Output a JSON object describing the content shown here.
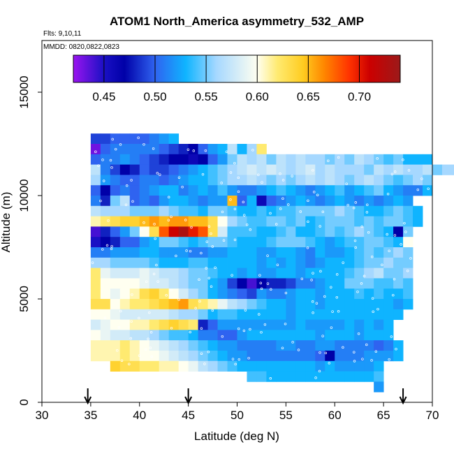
{
  "chart_data": {
    "type": "heatmap",
    "title": "ATOM1 North_America asymmetry_532_AMP",
    "subtitle_flights": "Flts: 9,10,11",
    "subtitle_dates": "MMDD: 0820,0822,0823",
    "xlabel": "Latitude (deg N)",
    "ylabel": "Altitude (m)",
    "xlim": [
      30,
      70
    ],
    "ylim": [
      0,
      17500
    ],
    "x_ticks": [
      30,
      35,
      40,
      45,
      50,
      55,
      60,
      65,
      70
    ],
    "x_tick_labels": [
      "30",
      "35",
      "40",
      "45",
      "50",
      "55",
      "60",
      "65",
      "70"
    ],
    "y_ticks": [
      0,
      5000,
      10000,
      15000
    ],
    "y_tick_labels": [
      "0",
      "5000",
      "10000",
      "15000"
    ],
    "grid": false,
    "cell_size": {
      "lat_deg": 1,
      "alt_m": 500
    },
    "colorbar": {
      "placement": "top-inside",
      "range": [
        0.42,
        0.74
      ],
      "ticks": [
        0.45,
        0.5,
        0.55,
        0.6,
        0.65,
        0.7
      ],
      "tick_labels": [
        "0.45",
        "0.50",
        "0.55",
        "0.60",
        "0.65",
        "0.70"
      ],
      "stops": [
        {
          "v": 0.42,
          "color": "#9a14f0"
        },
        {
          "v": 0.45,
          "color": "#1a10c4"
        },
        {
          "v": 0.47,
          "color": "#0000a8"
        },
        {
          "v": 0.5,
          "color": "#2f63f0"
        },
        {
          "v": 0.53,
          "color": "#0fb4ff"
        },
        {
          "v": 0.56,
          "color": "#a6d8ff"
        },
        {
          "v": 0.6,
          "color": "#fffff0"
        },
        {
          "v": 0.62,
          "color": "#ffea70"
        },
        {
          "v": 0.645,
          "color": "#ffcc20"
        },
        {
          "v": 0.665,
          "color": "#ff8800"
        },
        {
          "v": 0.69,
          "color": "#ff3300"
        },
        {
          "v": 0.71,
          "color": "#cc0000"
        },
        {
          "v": 0.74,
          "color": "#9c1a1a"
        }
      ]
    },
    "flight_dates_latitude": [
      34.7,
      45,
      67
    ],
    "bands": [
      {
        "alt": 12500,
        "lat0": 35,
        "vals": [
          0.49,
          0.49,
          0.5,
          0.5,
          0.5,
          0.5,
          0.51,
          0.52,
          0.53
        ]
      },
      {
        "alt": 12000,
        "lat0": 35,
        "vals": [
          0.43,
          0.5,
          0.51,
          0.51,
          0.51,
          0.51,
          0.51,
          0.5,
          0.49,
          0.48,
          0.47,
          0.5,
          0.52,
          0.53,
          0.57,
          0.53,
          0.56,
          0.62
        ]
      },
      {
        "alt": 11500,
        "lat0": 35,
        "vals": [
          0.5,
          0.51,
          0.51,
          0.52,
          0.51,
          0.5,
          0.49,
          0.48,
          0.47,
          0.47,
          0.46,
          0.47,
          0.5,
          0.52,
          0.55,
          0.57,
          0.56,
          0.57,
          0.55,
          0.57,
          0.56,
          0.57,
          0.56,
          0.56,
          0.55,
          0.56,
          0.55,
          0.57,
          0.56,
          0.55,
          0.54,
          0.55,
          0.53,
          0.53,
          0.53
        ]
      },
      {
        "alt": 11000,
        "lat0": 35,
        "vals": [
          0.57,
          0.51,
          0.49,
          0.47,
          0.48,
          0.5,
          0.49,
          0.49,
          0.5,
          0.51,
          0.52,
          0.53,
          0.54,
          0.55,
          0.56,
          0.57,
          0.58,
          0.57,
          0.58,
          0.57,
          0.56,
          0.57,
          0.58,
          0.56,
          0.57,
          0.56,
          0.56,
          0.56,
          0.55,
          0.57,
          0.56,
          0.57,
          0.56,
          0.56,
          0.57,
          0.55,
          0.56,
          0.56,
          0.55,
          0.56,
          0.55,
          0.56,
          0.55,
          0.56,
          0.55,
          0.56,
          0.55,
          0.55,
          0.56,
          0.55,
          0.56,
          0.55,
          0.56,
          0.55,
          0.55,
          0.56,
          0.55,
          0.56,
          0.55,
          0.55,
          0.56,
          0.55,
          0.56,
          0.55,
          0.55,
          0.56,
          0.54,
          0.56,
          0.53,
          0.55,
          0.56,
          0.55,
          0.56,
          0.55,
          0.56,
          0.55
        ]
      },
      {
        "alt": 10500,
        "lat0": 35,
        "vals": [
          0.56,
          0.52,
          0.51,
          0.5,
          0.5,
          0.51,
          0.51,
          0.5,
          0.51,
          0.52,
          0.53,
          0.53,
          0.54,
          0.55,
          0.56,
          0.56,
          0.57,
          0.56,
          0.55,
          0.56,
          0.55,
          0.56,
          0.57,
          0.56,
          0.57,
          0.56,
          0.55,
          0.56,
          0.57,
          0.56,
          0.55,
          0.54,
          0.55,
          0.56,
          0.55
        ]
      },
      {
        "alt": 10000,
        "lat0": 35,
        "vals": [
          0.5,
          0.47,
          0.5,
          0.51,
          0.5,
          0.51,
          0.52,
          0.53,
          0.53,
          0.51,
          0.52,
          0.53,
          0.52,
          0.54,
          0.52,
          0.51,
          0.51,
          0.52,
          0.53,
          0.54,
          0.53,
          0.52,
          0.51,
          0.52,
          0.53,
          0.54,
          0.52,
          0.53,
          0.54,
          0.55,
          0.53,
          0.52,
          0.51,
          0.51,
          0.53
        ]
      },
      {
        "alt": 9500,
        "lat0": 35,
        "vals": [
          0.51,
          0.48,
          0.55,
          0.57,
          0.5,
          0.51,
          0.5,
          0.52,
          0.53,
          0.53,
          0.52,
          0.51,
          0.52,
          0.52,
          0.65,
          0.5,
          0.53,
          0.46,
          0.5,
          0.51,
          0.52,
          0.53,
          0.52,
          0.51,
          0.52,
          0.53,
          0.52,
          0.51,
          0.52,
          0.51,
          0.52,
          0.53,
          0.52
        ]
      },
      {
        "alt": 9000,
        "lat0": 35,
        "vals": [
          0.57,
          0.56,
          0.56,
          0.56,
          0.55,
          0.55,
          0.55,
          0.56,
          0.55,
          0.54,
          0.54,
          0.53,
          0.55,
          0.55,
          0.54,
          0.53,
          0.53,
          0.54,
          0.53,
          0.54,
          0.54,
          0.55,
          0.55,
          0.55,
          0.55,
          0.56,
          0.55,
          0.54,
          0.53,
          0.53,
          0.54,
          0.55,
          0.54,
          0.53
        ]
      },
      {
        "alt": 8500,
        "lat0": 35,
        "vals": [
          0.61,
          0.62,
          0.63,
          0.64,
          0.64,
          0.65,
          0.66,
          0.65,
          0.66,
          0.66,
          0.65,
          0.65,
          0.63,
          0.6,
          0.56,
          0.55,
          0.54,
          0.54,
          0.55,
          0.55,
          0.54,
          0.55,
          0.53,
          0.54,
          0.55,
          0.55,
          0.55,
          0.54,
          0.55,
          0.54,
          0.55,
          0.55,
          0.54,
          0.53
        ]
      },
      {
        "alt": 8000,
        "lat0": 35,
        "vals": [
          0.44,
          0.48,
          0.5,
          0.52,
          0.55,
          0.6,
          0.63,
          0.68,
          0.71,
          0.73,
          0.7,
          0.68,
          0.63,
          0.58,
          0.54,
          0.54,
          0.54,
          0.53,
          0.53,
          0.54,
          0.55,
          0.53,
          0.53,
          0.54,
          0.55,
          0.54,
          0.55,
          0.56,
          0.55,
          0.54,
          0.53,
          0.47,
          0.55
        ]
      },
      {
        "alt": 7500,
        "lat0": 35,
        "vals": [
          0.45,
          0.47,
          0.48,
          0.5,
          0.5,
          0.52,
          0.53,
          0.55,
          0.55,
          0.54,
          0.53,
          0.54,
          0.55,
          0.55,
          0.54,
          0.53,
          0.53,
          0.53,
          0.54,
          0.55,
          0.55,
          0.55,
          0.54,
          0.53,
          0.52,
          0.53,
          0.54,
          0.54,
          0.55,
          0.55,
          0.54,
          0.53,
          0.6
        ]
      },
      {
        "alt": 7000,
        "lat0": 35,
        "vals": [
          0.51,
          0.51,
          0.52,
          0.52,
          0.52,
          0.53,
          0.53,
          0.52,
          0.52,
          0.52,
          0.51,
          0.51,
          0.52,
          0.52,
          0.53,
          0.53,
          0.53,
          0.52,
          0.52,
          0.53,
          0.53,
          0.52,
          0.51,
          0.53,
          0.52,
          0.52,
          0.53,
          0.54,
          0.55,
          0.54,
          0.55,
          0.56,
          0.55
        ]
      },
      {
        "alt": 6500,
        "lat0": 35,
        "vals": [
          0.56,
          0.56,
          0.55,
          0.55,
          0.55,
          0.55,
          0.54,
          0.53,
          0.53,
          0.53,
          0.54,
          0.54,
          0.53,
          0.53,
          0.53,
          0.53,
          0.53,
          0.52,
          0.53,
          0.52,
          0.53,
          0.52,
          0.51,
          0.52,
          0.53,
          0.53,
          0.53,
          0.54,
          0.55,
          0.55,
          0.56,
          0.55,
          0.55
        ]
      },
      {
        "alt": 6000,
        "lat0": 35,
        "vals": [
          0.62,
          0.59,
          0.58,
          0.58,
          0.58,
          0.59,
          0.58,
          0.57,
          0.57,
          0.56,
          0.55,
          0.55,
          0.54,
          0.53,
          0.53,
          0.52,
          0.53,
          0.52,
          0.52,
          0.53,
          0.53,
          0.52,
          0.53,
          0.53,
          0.53,
          0.53,
          0.54,
          0.55,
          0.56,
          0.57,
          0.55,
          0.55,
          0.56
        ]
      },
      {
        "alt": 5500,
        "lat0": 35,
        "vals": [
          0.62,
          0.6,
          0.6,
          0.6,
          0.6,
          0.59,
          0.58,
          0.58,
          0.57,
          0.56,
          0.55,
          0.55,
          0.53,
          0.52,
          0.49,
          0.47,
          0.44,
          0.47,
          0.48,
          0.48,
          0.49,
          0.51,
          0.51,
          0.52,
          0.53,
          0.53,
          0.55,
          0.55,
          0.55,
          0.54,
          0.54,
          0.55,
          0.54
        ]
      },
      {
        "alt": 5000,
        "lat0": 35,
        "vals": [
          0.62,
          0.6,
          0.59,
          0.6,
          0.61,
          0.63,
          0.64,
          0.62,
          0.6,
          0.58,
          0.56,
          0.55,
          0.53,
          0.52,
          0.51,
          0.5,
          0.49,
          0.52,
          0.51,
          0.51,
          0.52,
          0.53,
          0.53,
          0.52,
          0.53,
          0.53,
          0.53,
          0.54,
          0.53,
          0.54,
          0.53,
          0.53,
          0.54
        ]
      },
      {
        "alt": 4500,
        "lat0": 35,
        "vals": [
          0.63,
          0.63,
          0.6,
          0.61,
          0.62,
          0.62,
          0.63,
          0.64,
          0.65,
          0.66,
          0.63,
          0.62,
          0.61,
          0.59,
          0.57,
          0.56,
          0.55,
          0.54,
          0.53,
          0.53,
          0.52,
          0.53,
          0.53,
          0.52,
          0.53,
          0.53,
          0.53,
          0.53,
          0.53,
          0.53,
          0.53,
          0.52,
          0.53
        ]
      },
      {
        "alt": 4000,
        "lat0": 35,
        "vals": [
          0.6,
          0.6,
          0.59,
          0.58,
          0.58,
          0.58,
          0.58,
          0.58,
          0.57,
          0.56,
          0.56,
          0.55,
          0.53,
          0.54,
          0.54,
          0.53,
          0.53,
          0.53,
          0.53,
          0.53,
          0.52,
          0.53,
          0.53,
          0.53,
          0.53,
          0.53,
          0.53,
          0.53,
          0.53,
          0.53,
          0.53,
          0.53
        ]
      },
      {
        "alt": 3500,
        "lat0": 35,
        "vals": [
          0.58,
          0.59,
          0.6,
          0.6,
          0.61,
          0.61,
          0.62,
          0.63,
          0.64,
          0.63,
          0.62,
          0.48,
          0.5,
          0.52,
          0.52,
          0.52,
          0.52,
          0.52,
          0.52,
          0.52,
          0.52,
          0.53,
          0.52,
          0.52,
          0.52,
          0.52,
          0.53,
          0.52,
          0.53,
          0.52,
          0.53
        ]
      },
      {
        "alt": 3000,
        "lat0": 35,
        "vals": [
          0.6,
          0.59,
          0.58,
          0.58,
          0.57,
          0.57,
          0.56,
          0.55,
          0.54,
          0.54,
          0.53,
          0.51,
          0.51,
          0.5,
          0.5,
          0.52,
          0.53,
          0.53,
          0.53,
          0.53,
          0.53,
          0.53,
          0.53,
          0.52,
          0.53,
          0.53,
          0.53,
          0.52,
          0.53,
          0.53,
          0.53
        ]
      },
      {
        "alt": 2500,
        "lat0": 35,
        "vals": [
          0.61,
          0.61,
          0.61,
          0.62,
          0.61,
          0.6,
          0.59,
          0.58,
          0.57,
          0.56,
          0.55,
          0.54,
          0.53,
          0.52,
          0.52,
          0.51,
          0.51,
          0.51,
          0.51,
          0.52,
          0.52,
          0.51,
          0.51,
          0.52,
          0.52,
          0.51,
          0.51,
          0.51,
          0.51,
          0.5,
          0.51,
          0.53
        ]
      },
      {
        "alt": 2000,
        "lat0": 35,
        "vals": [
          0.61,
          0.61,
          0.61,
          0.62,
          0.61,
          0.6,
          0.6,
          0.59,
          0.58,
          0.57,
          0.56,
          0.55,
          0.54,
          0.53,
          0.52,
          0.52,
          0.51,
          0.51,
          0.51,
          0.51,
          0.51,
          0.51,
          0.51,
          0.5,
          0.47,
          0.51,
          0.51,
          0.51,
          0.52,
          0.52,
          0.52,
          0.53
        ]
      },
      {
        "alt": 1500,
        "lat0": 37,
        "vals": [
          0.64,
          0.63,
          0.63,
          0.62,
          0.62,
          0.61,
          0.61,
          0.6,
          0.59,
          0.57,
          0.56,
          0.55,
          0.54,
          0.53,
          0.53,
          0.53,
          0.53,
          0.53,
          0.53,
          0.53,
          0.53,
          0.52,
          0.53,
          0.52,
          0.52,
          0.52,
          0.52,
          0.53
        ]
      },
      {
        "alt": 1000,
        "lat0": 51,
        "vals": [
          0.54,
          0.54,
          0.53,
          0.53,
          0.53,
          0.53,
          0.53,
          0.53,
          0.53,
          0.53,
          0.53,
          0.53,
          0.53,
          0.54
        ]
      },
      {
        "alt": 500,
        "lat0": 64,
        "vals": [
          0.52
        ]
      }
    ]
  }
}
